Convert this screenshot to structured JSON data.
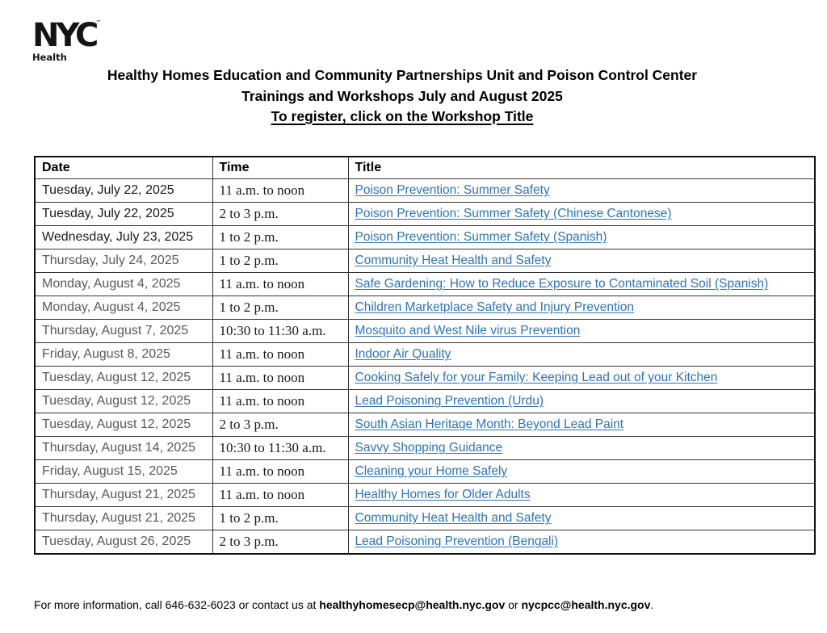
{
  "logo": {
    "brand": "NYC",
    "tm": "™",
    "sub": "Health"
  },
  "header": {
    "line1": "Healthy Homes Education and Community Partnerships Unit and Poison Control Center",
    "line2": "Trainings and Workshops July and August 2025",
    "line3": "To register, click on the Workshop Title"
  },
  "table": {
    "columns": [
      "Date",
      "Time",
      "Title"
    ],
    "rows": [
      {
        "date": "Tuesday, July 22, 2025",
        "time": "11 a.m. to noon",
        "title": "Poison Prevention: Summer Safety",
        "dark": true
      },
      {
        "date": "Tuesday, July 22, 2025",
        "time": "2 to 3 p.m.",
        "title": "Poison Prevention: Summer Safety (Chinese Cantonese)",
        "dark": true
      },
      {
        "date": "Wednesday, July 23, 2025",
        "time": "1 to 2 p.m.",
        "title": "Poison Prevention: Summer Safety (Spanish)",
        "dark": true
      },
      {
        "date": "Thursday, July 24, 2025",
        "time": "1 to 2 p.m.",
        "title": "Community Heat Health and Safety",
        "dark": false
      },
      {
        "date": "Monday, August 4, 2025",
        "time": "11 a.m. to noon",
        "title": "Safe Gardening: How to Reduce Exposure to Contaminated Soil (Spanish)",
        "dark": false
      },
      {
        "date": "Monday, August 4, 2025",
        "time": "1 to 2 p.m.",
        "title": "Children Marketplace Safety and Injury Prevention",
        "dark": false
      },
      {
        "date": "Thursday, August 7, 2025",
        "time": "10:30 to 11:30 a.m.",
        "title": "Mosquito and West Nile virus Prevention",
        "dark": false
      },
      {
        "date": "Friday, August 8, 2025",
        "time": "11 a.m. to noon",
        "title": "Indoor Air Quality",
        "dark": false
      },
      {
        "date": "Tuesday, August 12, 2025",
        "time": "11 a.m. to noon",
        "title": "Cooking Safely for your Family: Keeping Lead out of your Kitchen",
        "dark": false
      },
      {
        "date": "Tuesday, August 12, 2025",
        "time": "11 a.m. to noon",
        "title": "Lead Poisoning Prevention (Urdu)",
        "dark": false
      },
      {
        "date": "Tuesday, August 12, 2025",
        "time": "2 to 3 p.m.",
        "title": "South Asian Heritage Month: Beyond Lead Paint",
        "dark": false
      },
      {
        "date": "Thursday, August 14, 2025",
        "time": "10:30 to 11:30 a.m.",
        "title": "Savvy Shopping Guidance",
        "dark": false
      },
      {
        "date": "Friday, August 15, 2025",
        "time": "11 a.m. to noon",
        "title": "Cleaning your Home Safely",
        "dark": false
      },
      {
        "date": "Thursday, August 21, 2025",
        "time": "11 a.m. to noon",
        "title": "Healthy Homes for Older Adults",
        "dark": false
      },
      {
        "date": "Thursday, August 21, 2025",
        "time": "1 to 2 p.m.",
        "title": "Community Heat Health and Safety",
        "dark": false
      },
      {
        "date": "Tuesday, August 26, 2025",
        "time": "2 to 3 p.m.",
        "title": "Lead Poisoning Prevention (Bengali)",
        "dark": false
      }
    ]
  },
  "footer": {
    "prefix": "For more information, call 646-632-6023 or contact us at ",
    "email1": "healthyhomesecp@health.nyc.gov",
    "separator": " or ",
    "email2": "nycpcc@health.nyc.gov",
    "suffix": "."
  },
  "colors": {
    "link_blue": "#2E74B5",
    "date_gray": "#595959",
    "date_dark": "#1a1a1a"
  }
}
